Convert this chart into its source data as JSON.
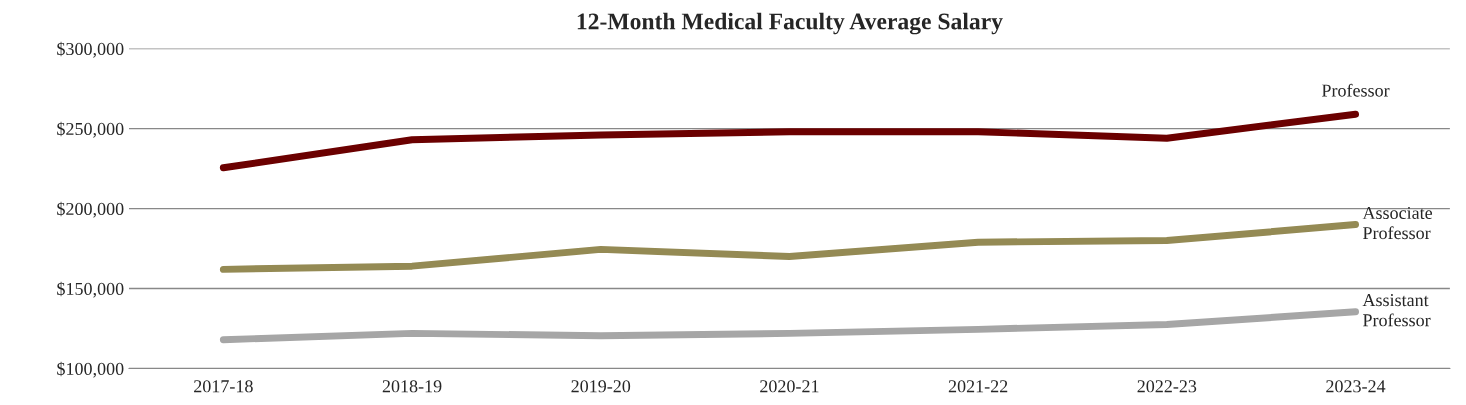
{
  "chart_data": {
    "type": "line",
    "title": "12-Month Medical Faculty Average Salary",
    "categories": [
      "2017-18",
      "2018-19",
      "2019-20",
      "2020-21",
      "2021-22",
      "2022-23",
      "2023-24"
    ],
    "series": [
      {
        "name": "Professor",
        "color": "#6b0000",
        "values": [
          225500,
          243000,
          246000,
          248000,
          248000,
          244000,
          259000
        ]
      },
      {
        "name": "Associate Professor",
        "color": "#948a54",
        "values": [
          162000,
          164000,
          174500,
          170000,
          179000,
          180000,
          190000
        ]
      },
      {
        "name": "Assistant Professor",
        "color": "#a6a6a6",
        "values": [
          118000,
          122000,
          120500,
          122000,
          124500,
          127500,
          135500
        ]
      }
    ],
    "ylim": [
      100000,
      300000
    ],
    "yticks": [
      {
        "value": 100000,
        "label": "$100,000"
      },
      {
        "value": 150000,
        "label": "$150,000"
      },
      {
        "value": 200000,
        "label": "$200,000"
      },
      {
        "value": 250000,
        "label": "$250,000"
      },
      {
        "value": 300000,
        "label": "$300,000"
      }
    ],
    "grid": "y",
    "legend": false,
    "marker": "none",
    "line_style": "solid"
  }
}
